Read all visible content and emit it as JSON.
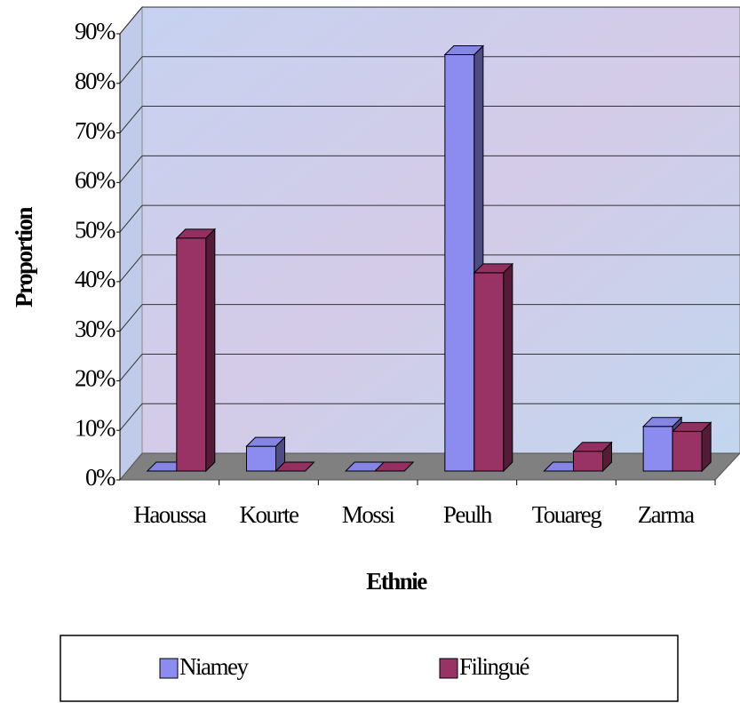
{
  "chart_data": {
    "type": "bar3d",
    "x_label": "Ethnie",
    "y_label": "Proportion",
    "categories": [
      "Haoussa",
      "Kourte",
      "Mossi",
      "Peulh",
      "Touareg",
      "Zarma"
    ],
    "series": [
      {
        "name": "Niamey",
        "color": "#8c8cf0",
        "values": [
          0,
          5,
          0,
          84,
          0,
          9
        ]
      },
      {
        "name": "Filingué",
        "color": "#993366",
        "values": [
          47,
          0,
          0,
          40,
          4,
          8
        ]
      }
    ],
    "ylim": [
      0,
      90
    ],
    "yticks": [
      {
        "value": 0,
        "label": "0%"
      },
      {
        "value": 10,
        "label": "10%"
      },
      {
        "value": 20,
        "label": "20%"
      },
      {
        "value": 30,
        "label": "30%"
      },
      {
        "value": 40,
        "label": "40%"
      },
      {
        "value": 50,
        "label": "50%"
      },
      {
        "value": 60,
        "label": "60%"
      },
      {
        "value": 70,
        "label": "70%"
      },
      {
        "value": 80,
        "label": "80%"
      },
      {
        "value": 90,
        "label": "90%"
      }
    ],
    "grid": true,
    "legend": "bottom"
  }
}
